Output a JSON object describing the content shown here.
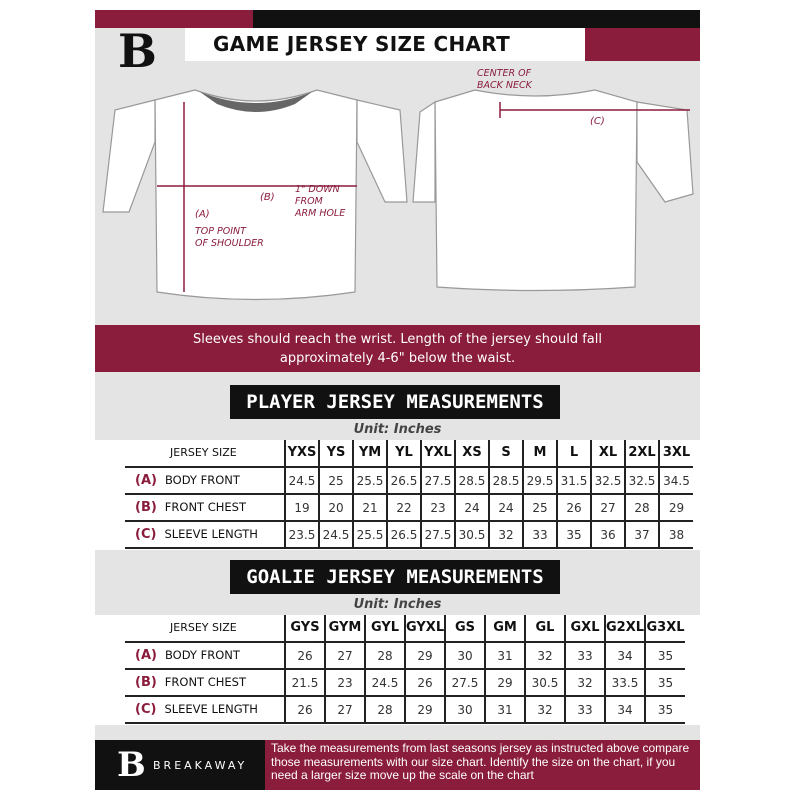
{
  "header": {
    "title": "GAME JERSEY SIZE CHART",
    "logo": "B"
  },
  "diagram": {
    "label_a": "(A)",
    "label_b": "(B)",
    "label_c": "(C)",
    "note_shoulder": [
      "TOP POINT",
      "OF SHOULDER"
    ],
    "note_armhole": [
      "1\" DOWN",
      "FROM",
      "ARM HOLE"
    ],
    "note_neck": [
      "CENTER OF",
      "BACK NECK"
    ]
  },
  "band_text": [
    "Sleeves should reach the wrist. Length of the jersey should fall",
    "approximately 4-6\" below the waist."
  ],
  "player": {
    "heading": "PLAYER JERSEY MEASUREMENTS",
    "unit": "Unit: Inches",
    "size_label": "JERSEY SIZE",
    "sizes": [
      "YXS",
      "YS",
      "YM",
      "YL",
      "YXL",
      "XS",
      "S",
      "M",
      "L",
      "XL",
      "2XL",
      "3XL"
    ],
    "rows": [
      {
        "code": "(A)",
        "name": "BODY FRONT",
        "values": [
          "24.5",
          "25",
          "25.5",
          "26.5",
          "27.5",
          "28.5",
          "28.5",
          "29.5",
          "31.5",
          "32.5",
          "32.5",
          "34.5"
        ]
      },
      {
        "code": "(B)",
        "name": "FRONT CHEST",
        "values": [
          "19",
          "20",
          "21",
          "22",
          "23",
          "24",
          "24",
          "25",
          "26",
          "27",
          "28",
          "29"
        ]
      },
      {
        "code": "(C)",
        "name": "SLEEVE LENGTH",
        "values": [
          "23.5",
          "24.5",
          "25.5",
          "26.5",
          "27.5",
          "30.5",
          "32",
          "33",
          "35",
          "36",
          "37",
          "38"
        ]
      }
    ]
  },
  "goalie": {
    "heading": "GOALIE JERSEY MEASUREMENTS",
    "unit": "Unit: Inches",
    "size_label": "JERSEY SIZE",
    "sizes": [
      "GYS",
      "GYM",
      "GYL",
      "GYXL",
      "GS",
      "GM",
      "GL",
      "GXL",
      "G2XL",
      "G3XL"
    ],
    "rows": [
      {
        "code": "(A)",
        "name": "BODY FRONT",
        "values": [
          "26",
          "27",
          "28",
          "29",
          "30",
          "31",
          "32",
          "33",
          "34",
          "35"
        ]
      },
      {
        "code": "(B)",
        "name": "FRONT CHEST",
        "values": [
          "21.5",
          "23",
          "24.5",
          "26",
          "27.5",
          "29",
          "30.5",
          "32",
          "33.5",
          "35"
        ]
      },
      {
        "code": "(C)",
        "name": "SLEEVE LENGTH",
        "values": [
          "26",
          "27",
          "28",
          "29",
          "30",
          "31",
          "32",
          "33",
          "34",
          "35"
        ]
      }
    ]
  },
  "footer": {
    "brand": "BREAKAWAY",
    "logo": "B",
    "text": "Take the measurements from last seasons jersey as instructed above compare those measurements  with our size chart. Identify the size on the chart, if you need a larger size move up the scale on the chart"
  },
  "colors": {
    "accent": "#8a1c3c",
    "dark": "#111111",
    "panel": "#e4e4e4"
  }
}
